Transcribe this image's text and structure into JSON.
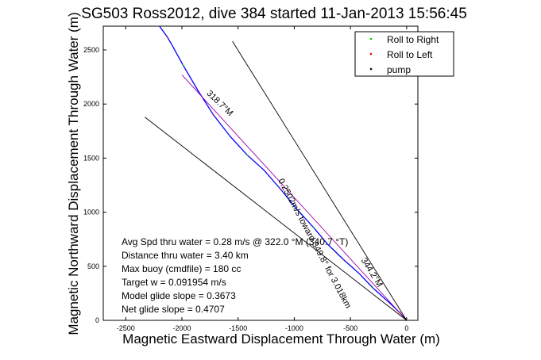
{
  "chart_data": {
    "type": "line",
    "title": "SG503 Ross2012, dive 384 started 11-Jan-2013 15:56:45",
    "xlabel": "Magnetic Eastward Displacement Through Water (m)",
    "ylabel": "Magnetic Northward Displacement Through Water (m)",
    "xlim": [
      -2700,
      100
    ],
    "ylim": [
      0,
      2720
    ],
    "xticks": [
      -2500,
      -2000,
      -1500,
      -1000,
      -500,
      0
    ],
    "yticks": [
      0,
      500,
      1000,
      1500,
      2000,
      2500
    ],
    "grid": false,
    "legend": {
      "placement": "top-right",
      "entries": [
        {
          "label": "Roll to Right",
          "color": "#00cc00"
        },
        {
          "label": "Roll to Left",
          "color": "#ff0000"
        },
        {
          "label": "pump",
          "color": "#000000"
        }
      ]
    },
    "series": [
      {
        "style": "blue-track",
        "color": "#0000ff",
        "x": [
          0,
          -60,
          -150,
          -300,
          -420,
          -560,
          -700,
          -830,
          -980,
          -1120,
          -1270,
          -1420,
          -1570,
          -1720,
          -1860,
          -1990,
          -2080,
          -2130,
          -2200
        ],
        "y": [
          0,
          70,
          160,
          300,
          430,
          560,
          700,
          860,
          1030,
          1210,
          1390,
          1530,
          1700,
          1900,
          2130,
          2360,
          2530,
          2620,
          2720
        ]
      },
      {
        "style": "magenta-line",
        "color": "#a000a0",
        "x": [
          0,
          -2000
        ],
        "y": [
          0,
          2270
        ]
      },
      {
        "style": "black-line",
        "color": "#000000",
        "x": [
          0,
          -1550
        ],
        "y": [
          0,
          2580
        ]
      },
      {
        "style": "black-line",
        "color": "#000000",
        "x": [
          0,
          -2330
        ],
        "y": [
          0,
          1880
        ]
      }
    ],
    "annotations": [
      {
        "text": "318.7°M",
        "x": -1680,
        "y": 1990,
        "rotate": 44
      },
      {
        "text": "0.2502m/s toward 349.8° for 3.018km",
        "x": -840,
        "y": 700,
        "rotate": 62
      },
      {
        "text": "344.2°M",
        "x": -330,
        "y": 430,
        "rotate": 58
      }
    ],
    "stats": [
      "Avg Spd thru water = 0.28 m/s @ 322.0 °M (340.7 °T)",
      "Distance thru water = 3.40 km",
      "Max buoy (cmdfile) = 180 cc",
      "Target w = 0.091954 m/s",
      "Model glide slope = 0.3673",
      "Net glide slope = 0.4707"
    ]
  }
}
